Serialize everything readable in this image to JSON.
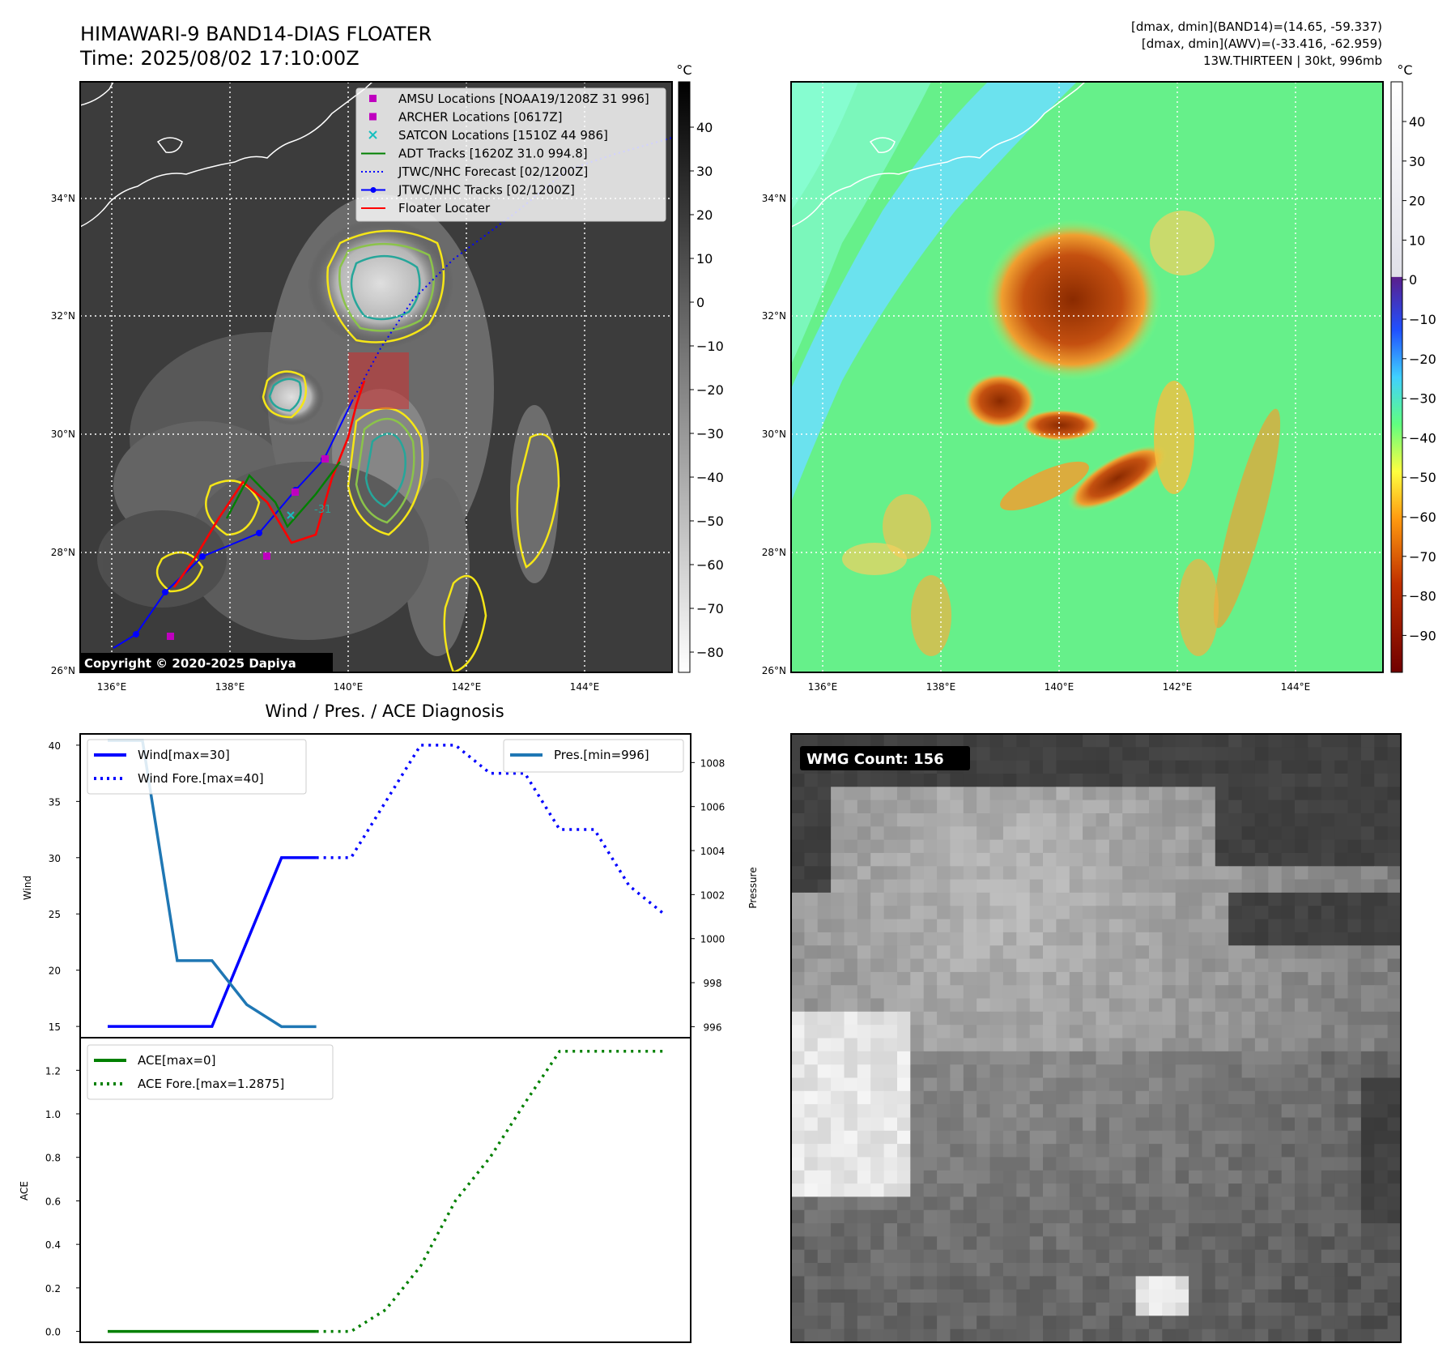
{
  "header": {
    "title_line1": "HIMAWARI-9 BAND14-DIAS FLOATER",
    "title_line2": "Time: 2025/08/02 17:10:00Z",
    "info_line1": "[dmax, dmin](BAND14)=(14.65, -59.337)",
    "info_line2": "[dmax, dmin](AWV)=(-33.416, -62.959)",
    "info_line3": "13W.THIRTEEN | 30kt, 996mb"
  },
  "map": {
    "lat_ticks": [
      "34°N",
      "32°N",
      "30°N",
      "28°N",
      "26°N"
    ],
    "lon_ticks": [
      "136°E",
      "138°E",
      "140°E",
      "142°E",
      "144°E"
    ],
    "copyright": "Copyright © 2020-2025 Dapiya",
    "legend": [
      {
        "label": "AMSU Locations [NOAA19/1208Z 31 996]",
        "color": "#bf00bf",
        "kind": "square"
      },
      {
        "label": "ARCHER Locations [0617Z]",
        "color": "#bf00bf",
        "kind": "square"
      },
      {
        "label": "SATCON Locations [1510Z 44 986]",
        "color": "#17bfbf",
        "kind": "cross"
      },
      {
        "label": "ADT Tracks [1620Z 31.0 994.8]",
        "color": "#008000",
        "kind": "line"
      },
      {
        "label": "JTWC/NHC Forecast [02/1200Z]",
        "color": "#0000ff",
        "kind": "dotted"
      },
      {
        "label": "JTWC/NHC Tracks [02/1200Z]",
        "color": "#0000ff",
        "kind": "marker-line"
      },
      {
        "label": "Floater Locater",
        "color": "#ff0000",
        "kind": "line"
      }
    ],
    "contour_label": "-31"
  },
  "colorbar_gray": {
    "unit": "°C",
    "ticks": [
      "40",
      "30",
      "20",
      "10",
      "0",
      "−10",
      "−20",
      "−30",
      "−40",
      "−50",
      "−60",
      "−70",
      "−80"
    ]
  },
  "colorbar_awv": {
    "unit": "°C",
    "ticks": [
      "40",
      "30",
      "20",
      "10",
      "0",
      "−10",
      "−20",
      "−30",
      "−40",
      "−50",
      "−60",
      "−70",
      "−80",
      "−90"
    ]
  },
  "wmg": {
    "label": "WMG Count: 156"
  },
  "chart_data": [
    {
      "type": "line",
      "title": "Wind / Pres. / ACE Diagnosis",
      "ylabel": "Wind",
      "y2label": "Pressure",
      "ylim": [
        14,
        41
      ],
      "y2lim": [
        995.5,
        1009.3
      ],
      "y_ticks": [
        "40",
        "35",
        "30",
        "25",
        "20",
        "15"
      ],
      "y2_ticks": [
        "1008",
        "1006",
        "1004",
        "1002",
        "1000",
        "998",
        "996"
      ],
      "series": [
        {
          "name": "Wind[max=30]",
          "x": [
            0,
            1,
            2,
            3,
            4,
            5,
            6
          ],
          "values": [
            15,
            15,
            15,
            15,
            22.5,
            30,
            30
          ],
          "color": "#0000ff",
          "style": "solid"
        },
        {
          "name": "Wind Fore.[max=40]",
          "x": [
            6,
            7,
            8,
            9,
            10,
            11,
            12,
            13,
            14,
            15,
            16
          ],
          "values": [
            30,
            30,
            35,
            40,
            40,
            37.5,
            37.5,
            32.5,
            32.5,
            27.5,
            25
          ],
          "color": "#0000ff",
          "style": "dotted"
        },
        {
          "name": "Pres.[min=996]",
          "x": [
            0,
            1,
            2,
            3,
            4,
            5,
            6
          ],
          "values": [
            1009,
            1009,
            999,
            999,
            997,
            996,
            996
          ],
          "color": "#1f77b4",
          "style": "solid",
          "axis": "right"
        }
      ]
    },
    {
      "type": "line",
      "ylabel": "ACE",
      "ylim": [
        -0.05,
        1.35
      ],
      "y_ticks": [
        "1.2",
        "1.0",
        "0.8",
        "0.6",
        "0.4",
        "0.2",
        "0.0"
      ],
      "series": [
        {
          "name": "ACE[max=0]",
          "x": [
            0,
            1,
            2,
            3,
            4,
            5,
            6
          ],
          "values": [
            0,
            0,
            0,
            0,
            0,
            0,
            0
          ],
          "color": "#008000",
          "style": "solid"
        },
        {
          "name": "ACE Fore.[max=1.2875]",
          "x": [
            6,
            7,
            8,
            9,
            10,
            11,
            12,
            13,
            14,
            15,
            16
          ],
          "values": [
            0,
            0,
            0.1,
            0.3,
            0.6,
            0.8,
            1.05,
            1.2875,
            1.2875,
            1.2875,
            1.2875
          ],
          "color": "#008000",
          "style": "dotted"
        }
      ]
    }
  ]
}
